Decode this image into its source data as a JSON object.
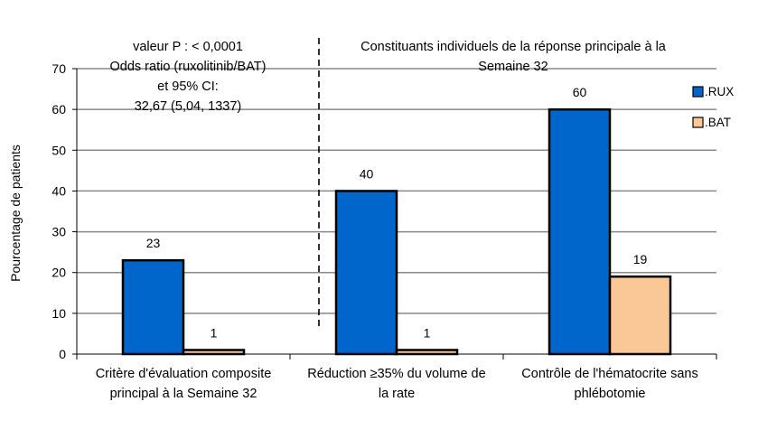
{
  "chart_data": {
    "type": "bar",
    "title": "",
    "xlabel": "",
    "ylabel": "Pourcentage de patients",
    "ylim": [
      0,
      70
    ],
    "yticks": [
      0,
      10,
      20,
      30,
      40,
      50,
      60,
      70
    ],
    "grid": true,
    "legend_position": "right",
    "categories": [
      [
        "Critère d'évaluation composite",
        "principal à la Semaine 32"
      ],
      [
        "Réduction ≥35% du volume de",
        "la rate"
      ],
      [
        "Contrôle de l'hématocrite sans",
        "phlébotomie"
      ]
    ],
    "series": [
      {
        "name": ".RUX",
        "color": "#0066cc",
        "values": [
          23,
          40,
          60
        ]
      },
      {
        "name": ".BAT",
        "color": "#fac896",
        "values": [
          1,
          1,
          19
        ]
      }
    ],
    "annotations": {
      "left_box": [
        "valeur P : < 0,0001",
        "Odds ratio (ruxolitinib/BAT)",
        "et 95% CI:",
        "32,67 (5,04, 1337)"
      ],
      "right_header": [
        "Constituants individuels de la réponse principale à la",
        "Semaine 32"
      ]
    }
  }
}
